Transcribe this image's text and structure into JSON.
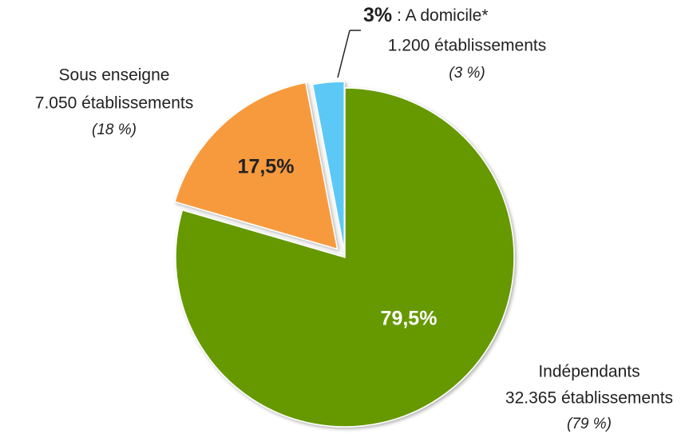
{
  "chart_data": {
    "type": "pie",
    "categories": [
      "Indépendants",
      "Sous enseigne",
      ": A domicile*"
    ],
    "values": [
      79.5,
      17.5,
      3
    ],
    "value_labels": [
      "79,5%",
      "17,5%",
      "3%"
    ],
    "colors": [
      "#669900",
      "#f79a3c",
      "#5bc8f5"
    ],
    "counts": [
      "32.365 établissements",
      "7.050 établissements",
      "1.200 établissements"
    ],
    "shares": [
      "(79 %)",
      "(18 %)",
      "(3 %)"
    ]
  }
}
